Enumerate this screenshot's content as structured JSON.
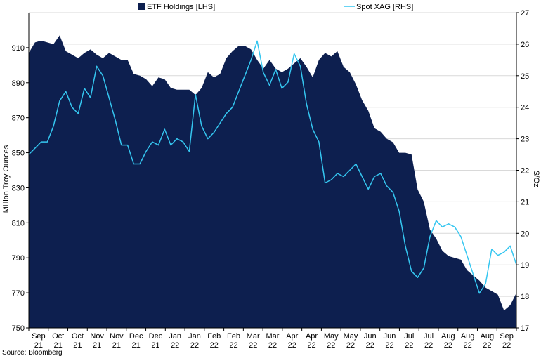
{
  "chart_data": {
    "type": "area",
    "title": "",
    "legend_position": "top",
    "grid": true,
    "colors": {
      "area": "#0d1f4f",
      "line": "#35c6f0",
      "grid": "#d9d9d9",
      "axis": "#000000"
    },
    "x_tick_labels": [
      [
        "Sep",
        "21"
      ],
      [
        "Oct",
        "21"
      ],
      [
        "Oct",
        "21"
      ],
      [
        "Nov",
        "21"
      ],
      [
        "Nov",
        "21"
      ],
      [
        "Dec",
        "21"
      ],
      [
        "Dec",
        "21"
      ],
      [
        "Jan",
        "22"
      ],
      [
        "Jan",
        "22"
      ],
      [
        "Feb",
        "22"
      ],
      [
        "Feb",
        "22"
      ],
      [
        "Mar",
        "22"
      ],
      [
        "Mar",
        "22"
      ],
      [
        "Apr",
        "22"
      ],
      [
        "Apr",
        "22"
      ],
      [
        "May",
        "22"
      ],
      [
        "May",
        "22"
      ],
      [
        "Jun",
        "22"
      ],
      [
        "Jun",
        "22"
      ],
      [
        "Jul",
        "22"
      ],
      [
        "Jul",
        "22"
      ],
      [
        "Aug",
        "22"
      ],
      [
        "Aug",
        "22"
      ],
      [
        "Aug",
        "22"
      ],
      [
        "Sep",
        "22"
      ]
    ],
    "y_left": {
      "label": "Million Troy  Ounces",
      "min": 750,
      "max": 930,
      "ticks": [
        750,
        770,
        790,
        810,
        830,
        850,
        870,
        890,
        910
      ]
    },
    "y_right": {
      "label": "$/Oz",
      "min": 17,
      "max": 27,
      "ticks": [
        17,
        18,
        19,
        20,
        21,
        22,
        23,
        24,
        25,
        26,
        27
      ]
    },
    "series": [
      {
        "name": "ETF Holdings [LHS]",
        "axis": "left",
        "type": "area",
        "values": [
          [
            0,
            907
          ],
          [
            1,
            913
          ],
          [
            2,
            914
          ],
          [
            3,
            913
          ],
          [
            4,
            912
          ],
          [
            5,
            917
          ],
          [
            6,
            908
          ],
          [
            7,
            906
          ],
          [
            8,
            904
          ],
          [
            9,
            907
          ],
          [
            10,
            909
          ],
          [
            11,
            906
          ],
          [
            12,
            904
          ],
          [
            13,
            907
          ],
          [
            14,
            905
          ],
          [
            15,
            903
          ],
          [
            16,
            903
          ],
          [
            17,
            895
          ],
          [
            18,
            894
          ],
          [
            19,
            892
          ],
          [
            20,
            888
          ],
          [
            21,
            893
          ],
          [
            22,
            892
          ],
          [
            23,
            887
          ],
          [
            24,
            886
          ],
          [
            25,
            886
          ],
          [
            26,
            886
          ],
          [
            27,
            883
          ],
          [
            28,
            887
          ],
          [
            29,
            896
          ],
          [
            30,
            893
          ],
          [
            31,
            895
          ],
          [
            32,
            904
          ],
          [
            33,
            908
          ],
          [
            34,
            911
          ],
          [
            35,
            911
          ],
          [
            36,
            909
          ],
          [
            37,
            903
          ],
          [
            38,
            898
          ],
          [
            39,
            903
          ],
          [
            40,
            898
          ],
          [
            41,
            896
          ],
          [
            42,
            898
          ],
          [
            43,
            901
          ],
          [
            44,
            904
          ],
          [
            45,
            899
          ],
          [
            46,
            893
          ],
          [
            47,
            903
          ],
          [
            48,
            907
          ],
          [
            49,
            905
          ],
          [
            50,
            908
          ],
          [
            51,
            899
          ],
          [
            52,
            896
          ],
          [
            53,
            889
          ],
          [
            54,
            880
          ],
          [
            55,
            874
          ],
          [
            56,
            864
          ],
          [
            57,
            862
          ],
          [
            58,
            858
          ],
          [
            59,
            856
          ],
          [
            60,
            850
          ],
          [
            61,
            850
          ],
          [
            62,
            849
          ],
          [
            63,
            829
          ],
          [
            64,
            822
          ],
          [
            65,
            806
          ],
          [
            66,
            801
          ],
          [
            67,
            794
          ],
          [
            68,
            791
          ],
          [
            69,
            790
          ],
          [
            70,
            789
          ],
          [
            71,
            783
          ],
          [
            72,
            780
          ],
          [
            73,
            777
          ],
          [
            74,
            773
          ],
          [
            75,
            771
          ],
          [
            76,
            769
          ],
          [
            77,
            760
          ],
          [
            78,
            763
          ],
          [
            79,
            770
          ]
        ]
      },
      {
        "name": "Spot XAG [RHS]",
        "axis": "right",
        "type": "line",
        "values": [
          [
            0,
            22.5
          ],
          [
            1,
            22.7
          ],
          [
            2,
            22.9
          ],
          [
            3,
            22.9
          ],
          [
            4,
            23.4
          ],
          [
            5,
            24.2
          ],
          [
            6,
            24.5
          ],
          [
            7,
            24.0
          ],
          [
            8,
            23.8
          ],
          [
            9,
            24.6
          ],
          [
            10,
            24.3
          ],
          [
            11,
            25.3
          ],
          [
            12,
            25.0
          ],
          [
            13,
            24.3
          ],
          [
            14,
            23.6
          ],
          [
            15,
            22.8
          ],
          [
            16,
            22.8
          ],
          [
            17,
            22.2
          ],
          [
            18,
            22.2
          ],
          [
            19,
            22.6
          ],
          [
            20,
            22.9
          ],
          [
            21,
            22.8
          ],
          [
            22,
            23.3
          ],
          [
            23,
            22.8
          ],
          [
            24,
            23.0
          ],
          [
            25,
            22.9
          ],
          [
            26,
            22.6
          ],
          [
            27,
            24.4
          ],
          [
            28,
            23.4
          ],
          [
            29,
            23.0
          ],
          [
            30,
            23.2
          ],
          [
            31,
            23.5
          ],
          [
            32,
            23.8
          ],
          [
            33,
            24.0
          ],
          [
            34,
            24.5
          ],
          [
            35,
            25.0
          ],
          [
            36,
            25.5
          ],
          [
            37,
            26.1
          ],
          [
            38,
            25.1
          ],
          [
            39,
            24.7
          ],
          [
            40,
            25.2
          ],
          [
            41,
            24.6
          ],
          [
            42,
            24.8
          ],
          [
            43,
            25.7
          ],
          [
            44,
            25.3
          ],
          [
            45,
            24.1
          ],
          [
            46,
            23.3
          ],
          [
            47,
            22.9
          ],
          [
            48,
            21.6
          ],
          [
            49,
            21.7
          ],
          [
            50,
            21.9
          ],
          [
            51,
            21.8
          ],
          [
            52,
            22.0
          ],
          [
            53,
            22.2
          ],
          [
            54,
            21.8
          ],
          [
            55,
            21.4
          ],
          [
            56,
            21.8
          ],
          [
            57,
            21.9
          ],
          [
            58,
            21.5
          ],
          [
            59,
            21.3
          ],
          [
            60,
            20.7
          ],
          [
            61,
            19.6
          ],
          [
            62,
            18.8
          ],
          [
            63,
            18.6
          ],
          [
            64,
            18.9
          ],
          [
            65,
            19.9
          ],
          [
            66,
            20.4
          ],
          [
            67,
            20.2
          ],
          [
            68,
            20.3
          ],
          [
            69,
            20.2
          ],
          [
            70,
            19.9
          ],
          [
            71,
            19.3
          ],
          [
            72,
            18.7
          ],
          [
            73,
            18.1
          ],
          [
            74,
            18.4
          ],
          [
            75,
            19.5
          ],
          [
            76,
            19.3
          ],
          [
            77,
            19.4
          ],
          [
            78,
            19.6
          ],
          [
            79,
            19.0
          ]
        ]
      }
    ]
  },
  "source": "Source: Bloomberg"
}
